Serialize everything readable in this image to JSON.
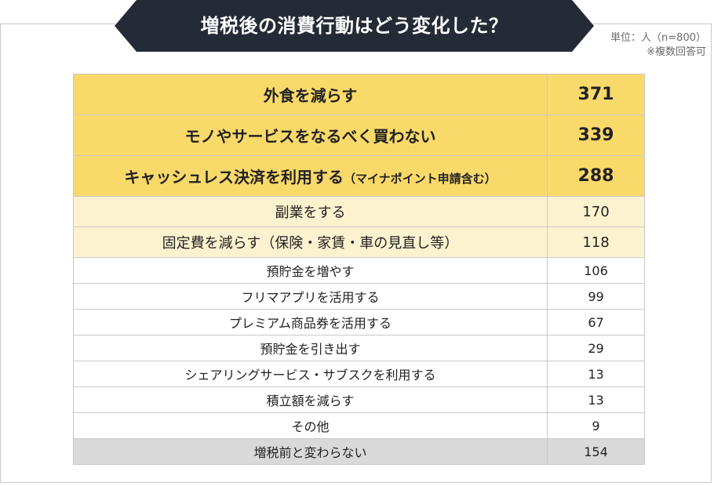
{
  "header": {
    "title": "増税後の消費行動はどう変化した？",
    "colors": {
      "banner": "#252b36",
      "text": "#ffffff"
    }
  },
  "unit_note": {
    "unit": "単位：人（n=800）",
    "multi": "※複数回答可"
  },
  "colors": {
    "top": "#fad96b",
    "mid": "#fdf2cf",
    "plain": "#ffffff",
    "none": "#d9d9d9"
  },
  "chart_data": {
    "type": "table",
    "title": "増税後の消費行動はどう変化した？",
    "unit": "単位：人（n=800）",
    "note": "※複数回答可",
    "rows": [
      {
        "label": "外食を減らす",
        "sub": "",
        "value": 371,
        "tier": "top"
      },
      {
        "label": "モノやサービスをなるべく買わない",
        "sub": "",
        "value": 339,
        "tier": "top"
      },
      {
        "label": "キャッシュレス決済を利用する",
        "sub": "（マイナポイント申請含む）",
        "value": 288,
        "tier": "top"
      },
      {
        "label": "副業をする",
        "sub": "",
        "value": 170,
        "tier": "mid"
      },
      {
        "label": "固定費を減らす（保険・家賃・車の見直し等）",
        "sub": "",
        "value": 118,
        "tier": "mid"
      },
      {
        "label": "預貯金を増やす",
        "sub": "",
        "value": 106,
        "tier": "plain"
      },
      {
        "label": "フリマアプリを活用する",
        "sub": "",
        "value": 99,
        "tier": "plain"
      },
      {
        "label": "プレミアム商品券を活用する",
        "sub": "",
        "value": 67,
        "tier": "plain"
      },
      {
        "label": "預貯金を引き出す",
        "sub": "",
        "value": 29,
        "tier": "plain"
      },
      {
        "label": "シェアリングサービス・サブスクを利用する",
        "sub": "",
        "value": 13,
        "tier": "plain"
      },
      {
        "label": "積立額を減らす",
        "sub": "",
        "value": 13,
        "tier": "plain"
      },
      {
        "label": "その他",
        "sub": "",
        "value": 9,
        "tier": "plain"
      },
      {
        "label": "増税前と変わらない",
        "sub": "",
        "value": 154,
        "tier": "none"
      }
    ]
  }
}
